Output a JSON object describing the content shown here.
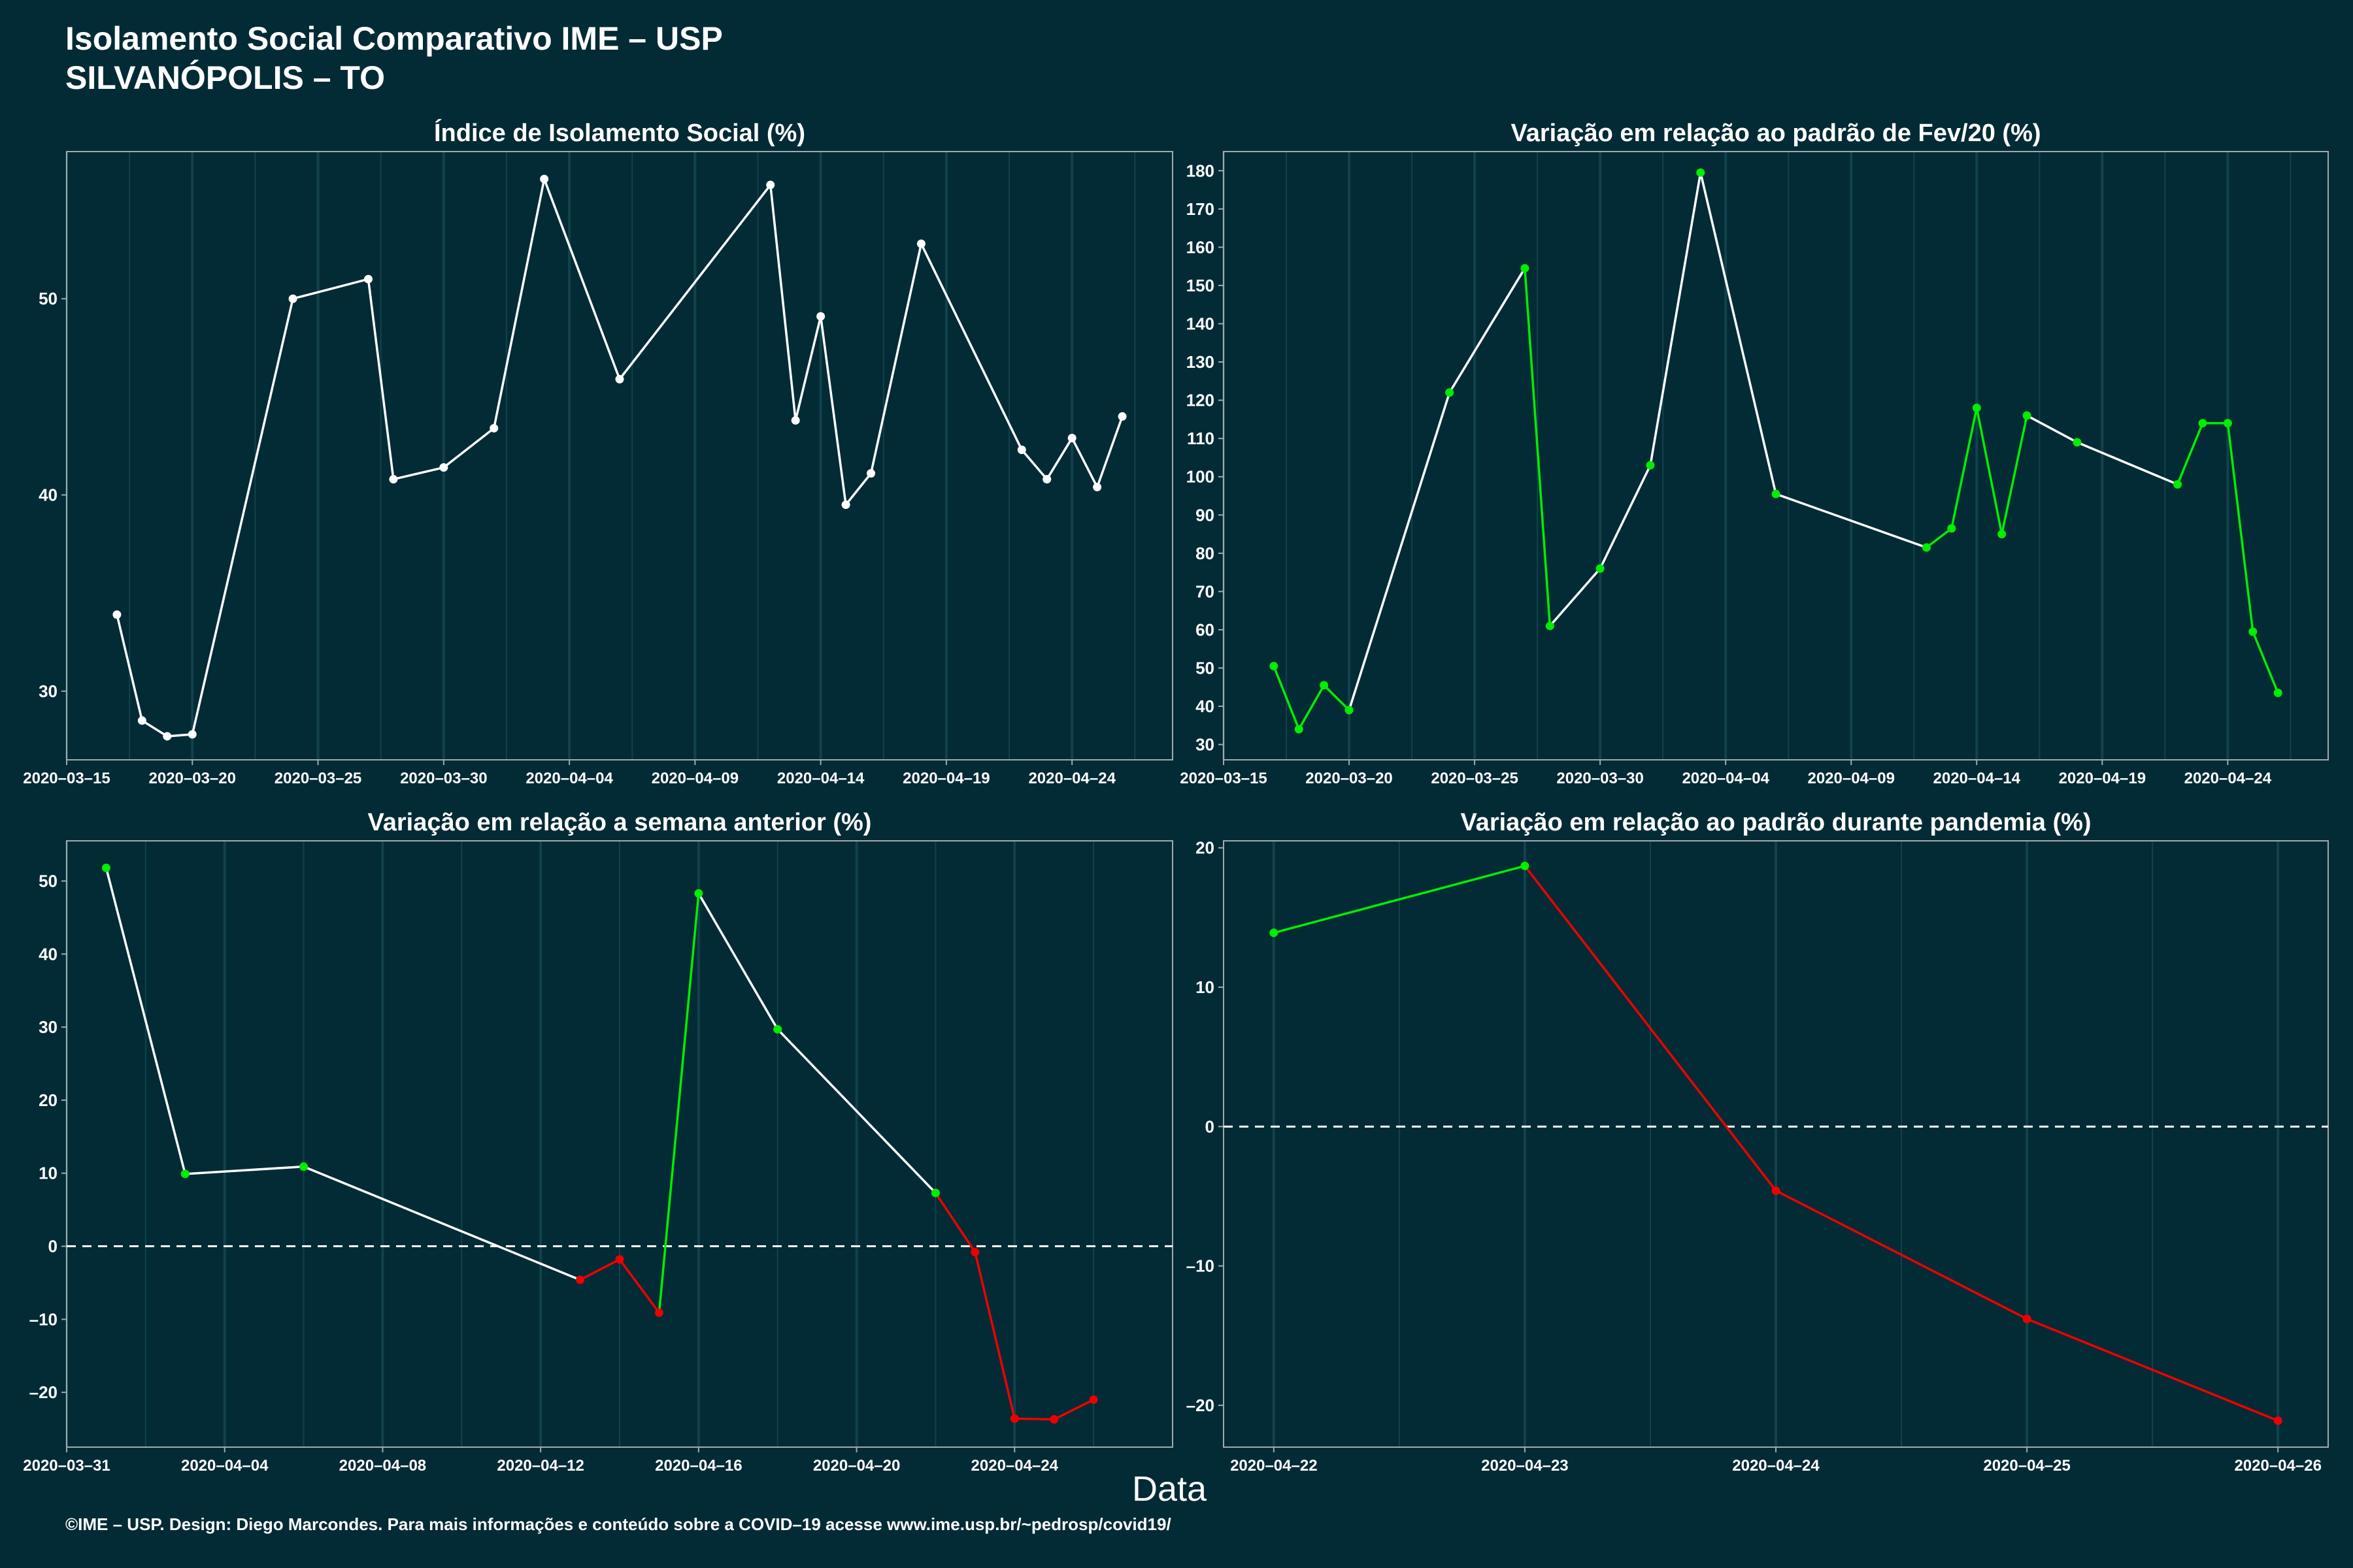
{
  "header": {
    "title_line1": "Isolamento Social Comparativo IME – USP",
    "title_line2": "SILVANÓPOLIS – TO"
  },
  "footer": "©IME – USP. Design: Diego Marcondes. Para mais informações e conteúdo sobre a COVID–19 acesse www.ime.usp.br/~pedrosp/covid19/",
  "x_axis_title": "Data",
  "colors": {
    "background": "#022b35",
    "panel_border": "#a0aaae",
    "grid": "#12424c",
    "text": "#ffffff",
    "white_line": "#ffffff",
    "increase": "#00ee00",
    "decrease": "#ee0000"
  },
  "chart_data": [
    {
      "id": "isolamento",
      "type": "line",
      "title": "Índice de Isolamento Social (%)",
      "x_type": "date",
      "xlim": [
        "2020-03-15",
        "2020-04-28"
      ],
      "ylim": [
        26.5,
        57.5
      ],
      "x_ticks": [
        "2020-03-15",
        "2020-03-20",
        "2020-03-25",
        "2020-03-30",
        "2020-04-04",
        "2020-04-09",
        "2020-04-14",
        "2020-04-19",
        "2020-04-24"
      ],
      "y_ticks": [
        30,
        40,
        50
      ],
      "x_tick_labels": [
        "2020–03–15",
        "2020–03–20",
        "2020–03–25",
        "2020–03–30",
        "2020–04–04",
        "2020–04–09",
        "2020–04–14",
        "2020–04–19",
        "2020–04–24"
      ],
      "y_tick_labels": [
        "30",
        "40",
        "50"
      ],
      "zero_line": false,
      "points": [
        {
          "x": "2020-03-17",
          "y": 33.9,
          "c": "white"
        },
        {
          "x": "2020-03-18",
          "y": 28.5,
          "c": "white"
        },
        {
          "x": "2020-03-19",
          "y": 27.7,
          "c": "white"
        },
        {
          "x": "2020-03-20",
          "y": 27.8,
          "c": "white"
        },
        {
          "x": "2020-03-24",
          "y": 50.0,
          "c": "white"
        },
        {
          "x": "2020-03-27",
          "y": 51.0,
          "c": "white"
        },
        {
          "x": "2020-03-28",
          "y": 40.8,
          "c": "white"
        },
        {
          "x": "2020-03-30",
          "y": 41.4,
          "c": "white"
        },
        {
          "x": "2020-04-01",
          "y": 43.4,
          "c": "white"
        },
        {
          "x": "2020-04-03",
          "y": 56.1,
          "c": "white"
        },
        {
          "x": "2020-04-06",
          "y": 45.9,
          "c": "white"
        },
        {
          "x": "2020-04-12",
          "y": 55.8,
          "c": "white"
        },
        {
          "x": "2020-04-13",
          "y": 43.8,
          "c": "white"
        },
        {
          "x": "2020-04-14",
          "y": 49.1,
          "c": "white"
        },
        {
          "x": "2020-04-15",
          "y": 39.5,
          "c": "white"
        },
        {
          "x": "2020-04-16",
          "y": 41.1,
          "c": "white"
        },
        {
          "x": "2020-04-18",
          "y": 52.8,
          "c": "white"
        },
        {
          "x": "2020-04-22",
          "y": 42.3,
          "c": "white"
        },
        {
          "x": "2020-04-23",
          "y": 40.8,
          "c": "white"
        },
        {
          "x": "2020-04-24",
          "y": 42.9,
          "c": "white"
        },
        {
          "x": "2020-04-25",
          "y": 40.4,
          "c": "white"
        },
        {
          "x": "2020-04-26",
          "y": 44.0,
          "c": "white"
        }
      ]
    },
    {
      "id": "variacao-fev",
      "type": "line",
      "title": "Variação em relação ao padrão de Fev/20 (%)",
      "x_type": "date",
      "xlim": [
        "2020-03-15",
        "2020-04-28"
      ],
      "ylim": [
        26,
        185
      ],
      "x_ticks": [
        "2020-03-15",
        "2020-03-20",
        "2020-03-25",
        "2020-03-30",
        "2020-04-04",
        "2020-04-09",
        "2020-04-14",
        "2020-04-19",
        "2020-04-24"
      ],
      "y_ticks": [
        30,
        40,
        50,
        60,
        70,
        80,
        90,
        100,
        110,
        120,
        130,
        140,
        150,
        160,
        170,
        180
      ],
      "x_tick_labels": [
        "2020–03–15",
        "2020–03–20",
        "2020–03–25",
        "2020–03–30",
        "2020–04–04",
        "2020–04–09",
        "2020–04–14",
        "2020–04–19",
        "2020–04–24"
      ],
      "y_tick_labels": [
        "30",
        "40",
        "50",
        "60",
        "70",
        "80",
        "90",
        "100",
        "110",
        "120",
        "130",
        "140",
        "150",
        "160",
        "170",
        "180"
      ],
      "zero_line": false,
      "points": [
        {
          "x": "2020-03-17",
          "y": 50.5,
          "c": "green"
        },
        {
          "x": "2020-03-18",
          "y": 34.0,
          "c": "green"
        },
        {
          "x": "2020-03-19",
          "y": 45.5,
          "c": "green"
        },
        {
          "x": "2020-03-20",
          "y": 39.0,
          "c": "green"
        },
        {
          "x": "2020-03-24",
          "y": 122.0,
          "c": "green"
        },
        {
          "x": "2020-03-27",
          "y": 154.5,
          "c": "green"
        },
        {
          "x": "2020-03-28",
          "y": 61.0,
          "c": "green"
        },
        {
          "x": "2020-03-30",
          "y": 76.0,
          "c": "green"
        },
        {
          "x": "2020-04-01",
          "y": 103.0,
          "c": "green"
        },
        {
          "x": "2020-04-03",
          "y": 179.5,
          "c": "green"
        },
        {
          "x": "2020-04-06",
          "y": 95.5,
          "c": "green"
        },
        {
          "x": "2020-04-12",
          "y": 81.5,
          "c": "green"
        },
        {
          "x": "2020-04-13",
          "y": 86.5,
          "c": "green"
        },
        {
          "x": "2020-04-14",
          "y": 118.0,
          "c": "green"
        },
        {
          "x": "2020-04-15",
          "y": 85.0,
          "c": "green"
        },
        {
          "x": "2020-04-16",
          "y": 116.0,
          "c": "green"
        },
        {
          "x": "2020-04-18",
          "y": 109.0,
          "c": "green"
        },
        {
          "x": "2020-04-22",
          "y": 98.0,
          "c": "green"
        },
        {
          "x": "2020-04-23",
          "y": 114.0,
          "c": "green"
        },
        {
          "x": "2020-04-24",
          "y": 114.0,
          "c": "green"
        },
        {
          "x": "2020-04-25",
          "y": 59.5,
          "c": "green"
        },
        {
          "x": "2020-04-26",
          "y": 43.5,
          "c": "green"
        }
      ],
      "segment_colors": [
        "green",
        "green",
        "green",
        "white",
        "white",
        "green",
        "white",
        "white",
        "white",
        "white",
        "white",
        "green",
        "green",
        "green",
        "green",
        "white",
        "white",
        "green",
        "green",
        "green",
        "green"
      ]
    },
    {
      "id": "variacao-semana",
      "type": "line",
      "title": "Variação em relação a semana anterior (%)",
      "x_type": "date",
      "xlim": [
        "2020-03-31",
        "2020-04-28"
      ],
      "ylim": [
        -27.5,
        55.5
      ],
      "x_ticks": [
        "2020-03-31",
        "2020-04-04",
        "2020-04-08",
        "2020-04-12",
        "2020-04-16",
        "2020-04-20",
        "2020-04-24"
      ],
      "y_ticks": [
        -20,
        -10,
        0,
        10,
        20,
        30,
        40,
        50
      ],
      "x_tick_labels": [
        "2020–03–31",
        "2020–04–04",
        "2020–04–08",
        "2020–04–12",
        "2020–04–16",
        "2020–04–20",
        "2020–04–24"
      ],
      "y_tick_labels": [
        "–20",
        "–10",
        "0",
        "10",
        "20",
        "30",
        "40",
        "50"
      ],
      "zero_line": true,
      "points": [
        {
          "x": "2020-04-01",
          "y": 51.8,
          "c": "green"
        },
        {
          "x": "2020-04-03",
          "y": 9.9,
          "c": "green"
        },
        {
          "x": "2020-04-06",
          "y": 10.9,
          "c": "green"
        },
        {
          "x": "2020-04-13",
          "y": -4.6,
          "c": "red"
        },
        {
          "x": "2020-04-14",
          "y": -1.8,
          "c": "red"
        },
        {
          "x": "2020-04-15",
          "y": -9.1,
          "c": "red"
        },
        {
          "x": "2020-04-16",
          "y": 48.3,
          "c": "green"
        },
        {
          "x": "2020-04-18",
          "y": 29.7,
          "c": "green"
        },
        {
          "x": "2020-04-22",
          "y": 7.3,
          "c": "green"
        },
        {
          "x": "2020-04-23",
          "y": -0.8,
          "c": "red"
        },
        {
          "x": "2020-04-24",
          "y": -23.6,
          "c": "red"
        },
        {
          "x": "2020-04-25",
          "y": -23.7,
          "c": "red"
        },
        {
          "x": "2020-04-26",
          "y": -21.0,
          "c": "red"
        }
      ],
      "segment_colors": [
        "white",
        "white",
        "white",
        "red",
        "red",
        "green",
        "white",
        "white",
        "red",
        "red",
        "red",
        "red"
      ]
    },
    {
      "id": "variacao-pandemia",
      "type": "line",
      "title": "Variação em relação ao padrão durante pandemia (%)",
      "x_type": "date",
      "xlim": [
        "2020-04-21.8",
        "2020-04-26.2"
      ],
      "ylim": [
        -23,
        20.5
      ],
      "x_ticks": [
        "2020-04-22",
        "2020-04-23",
        "2020-04-24",
        "2020-04-25",
        "2020-04-26"
      ],
      "y_ticks": [
        -20,
        -10,
        0,
        10,
        20
      ],
      "x_tick_labels": [
        "2020–04–22",
        "2020–04–23",
        "2020–04–24",
        "2020–04–25",
        "2020–04–26"
      ],
      "y_tick_labels": [
        "–20",
        "–10",
        "0",
        "10",
        "20"
      ],
      "zero_line": true,
      "points": [
        {
          "x": "2020-04-22",
          "y": 13.9,
          "c": "green"
        },
        {
          "x": "2020-04-23",
          "y": 18.7,
          "c": "green"
        },
        {
          "x": "2020-04-24",
          "y": -4.6,
          "c": "red"
        },
        {
          "x": "2020-04-25",
          "y": -13.8,
          "c": "red"
        },
        {
          "x": "2020-04-26",
          "y": -21.1,
          "c": "red"
        }
      ],
      "segment_colors": [
        "green",
        "red",
        "red",
        "red"
      ]
    }
  ]
}
